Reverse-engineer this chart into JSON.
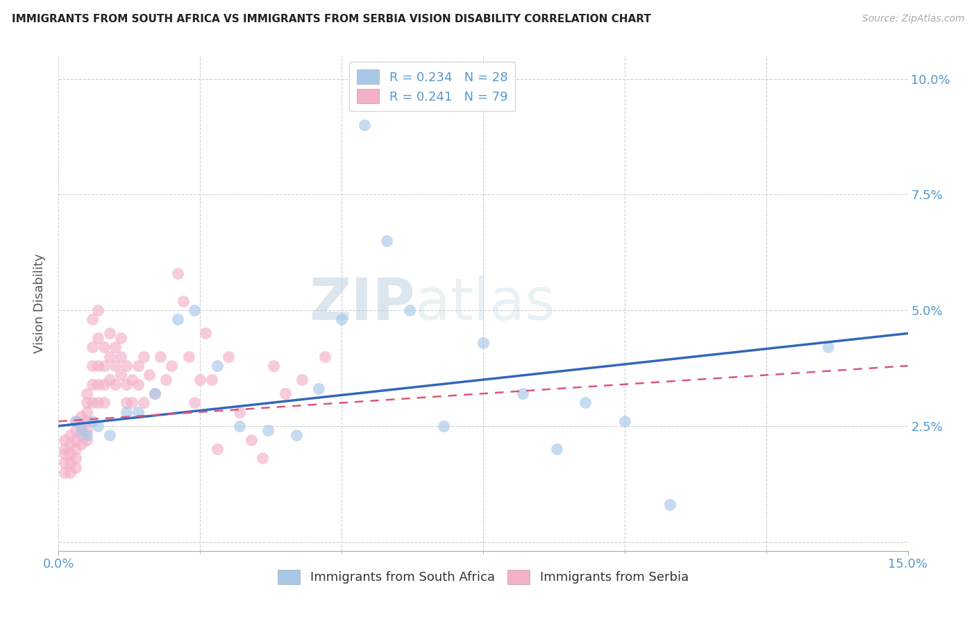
{
  "title": "IMMIGRANTS FROM SOUTH AFRICA VS IMMIGRANTS FROM SERBIA VISION DISABILITY CORRELATION CHART",
  "source": "Source: ZipAtlas.com",
  "ylabel": "Vision Disability",
  "xlim": [
    0,
    0.15
  ],
  "ylim": [
    -0.002,
    0.105
  ],
  "background_color": "#ffffff",
  "grid_color": "#d0d0d0",
  "blue_scatter_color": "#a8c8e8",
  "pink_scatter_color": "#f4b0c8",
  "blue_line_color": "#3366bb",
  "pink_line_color": "#dd5577",
  "R_blue": 0.234,
  "N_blue": 28,
  "R_pink": 0.241,
  "N_pink": 79,
  "legend_label_blue": "Immigrants from South Africa",
  "legend_label_pink": "Immigrants from Serbia",
  "watermark_left": "ZIP",
  "watermark_right": "atlas",
  "south_africa_x": [
    0.003,
    0.004,
    0.005,
    0.006,
    0.007,
    0.009,
    0.012,
    0.014,
    0.017,
    0.021,
    0.024,
    0.028,
    0.032,
    0.037,
    0.042,
    0.046,
    0.05,
    0.054,
    0.058,
    0.062,
    0.068,
    0.075,
    0.082,
    0.088,
    0.093,
    0.1,
    0.108,
    0.136
  ],
  "south_africa_y": [
    0.026,
    0.024,
    0.023,
    0.026,
    0.025,
    0.023,
    0.028,
    0.028,
    0.032,
    0.048,
    0.05,
    0.038,
    0.025,
    0.024,
    0.023,
    0.033,
    0.048,
    0.09,
    0.065,
    0.05,
    0.025,
    0.043,
    0.032,
    0.02,
    0.03,
    0.026,
    0.008,
    0.042
  ],
  "serbia_x": [
    0.001,
    0.001,
    0.001,
    0.001,
    0.001,
    0.002,
    0.002,
    0.002,
    0.002,
    0.002,
    0.003,
    0.003,
    0.003,
    0.003,
    0.003,
    0.003,
    0.004,
    0.004,
    0.004,
    0.004,
    0.005,
    0.005,
    0.005,
    0.005,
    0.005,
    0.005,
    0.006,
    0.006,
    0.006,
    0.006,
    0.006,
    0.007,
    0.007,
    0.007,
    0.007,
    0.007,
    0.008,
    0.008,
    0.008,
    0.008,
    0.009,
    0.009,
    0.009,
    0.01,
    0.01,
    0.01,
    0.011,
    0.011,
    0.011,
    0.012,
    0.012,
    0.012,
    0.013,
    0.013,
    0.014,
    0.014,
    0.015,
    0.015,
    0.016,
    0.017,
    0.018,
    0.019,
    0.02,
    0.021,
    0.022,
    0.023,
    0.024,
    0.025,
    0.026,
    0.027,
    0.028,
    0.03,
    0.032,
    0.034,
    0.036,
    0.038,
    0.04,
    0.043,
    0.047
  ],
  "serbia_y": [
    0.022,
    0.02,
    0.019,
    0.017,
    0.015,
    0.023,
    0.021,
    0.019,
    0.017,
    0.015,
    0.026,
    0.024,
    0.022,
    0.02,
    0.018,
    0.016,
    0.027,
    0.025,
    0.023,
    0.021,
    0.032,
    0.03,
    0.028,
    0.026,
    0.024,
    0.022,
    0.048,
    0.042,
    0.038,
    0.034,
    0.03,
    0.05,
    0.044,
    0.038,
    0.034,
    0.03,
    0.042,
    0.038,
    0.034,
    0.03,
    0.045,
    0.04,
    0.035,
    0.042,
    0.038,
    0.034,
    0.044,
    0.04,
    0.036,
    0.038,
    0.034,
    0.03,
    0.035,
    0.03,
    0.038,
    0.034,
    0.04,
    0.03,
    0.036,
    0.032,
    0.04,
    0.035,
    0.038,
    0.058,
    0.052,
    0.04,
    0.03,
    0.035,
    0.045,
    0.035,
    0.02,
    0.04,
    0.028,
    0.022,
    0.018,
    0.038,
    0.032,
    0.035,
    0.04
  ]
}
